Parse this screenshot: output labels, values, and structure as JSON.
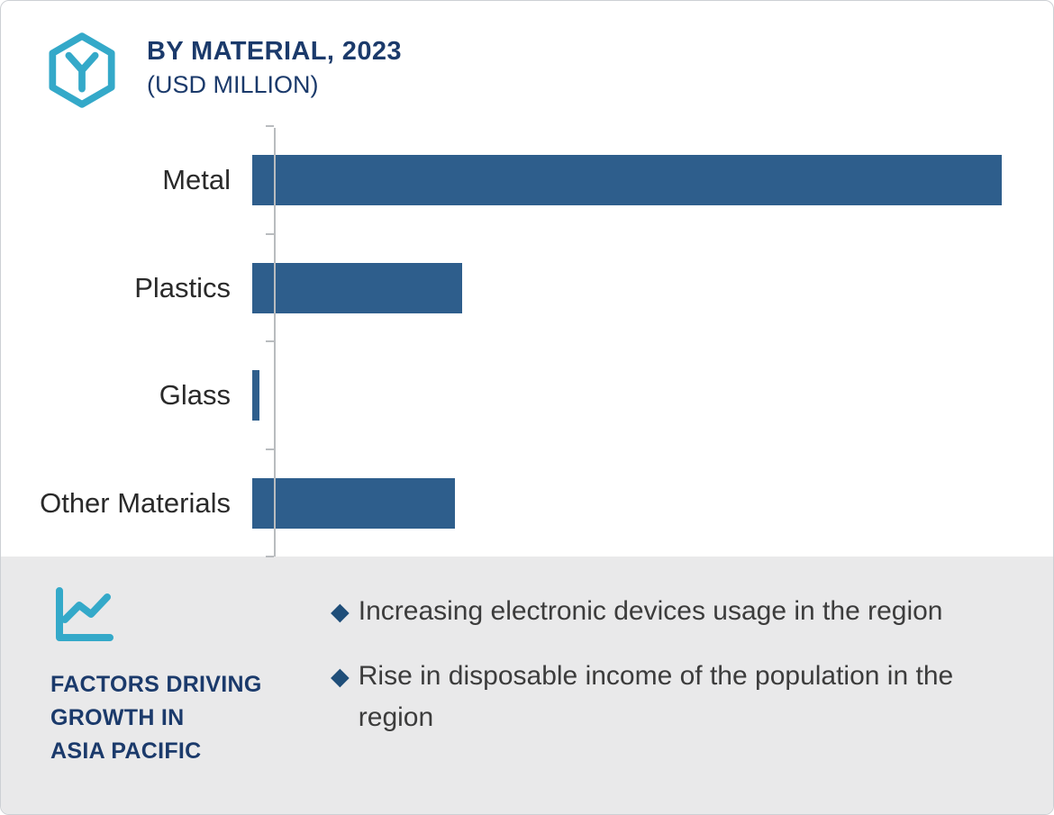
{
  "header": {
    "title": "BY MATERIAL, 2023",
    "subtitle": "(USD MILLION)",
    "title_color": "#1b3a6b",
    "logo_icon": "hexagon-molecule-icon",
    "accent_color": "#34a9c9"
  },
  "chart_data": {
    "type": "bar",
    "orientation": "horizontal",
    "title": "BY MATERIAL, 2023 (USD MILLION)",
    "categories": [
      "Metal",
      "Plastics",
      "Glass",
      "Other Materials"
    ],
    "values": [
      100,
      28,
      1,
      27
    ],
    "value_axis_labeled": false,
    "xlim": [
      0,
      100
    ],
    "grid": false,
    "legend": false,
    "bar_color": "#2e5e8c",
    "axis_color": "#b9bcbf"
  },
  "factors": {
    "icon": "trend-line-chart-icon",
    "heading": "FACTORS DRIVING\nGROWTH IN\nASIA PACIFIC",
    "heading_color": "#1b3a6b",
    "bullet_marker": "◆",
    "marker_color": "#1f4e79",
    "panel_background": "#e9e9ea",
    "items": [
      "Increasing electronic devices usage in the region",
      "Rise in disposable income of the population in the region"
    ]
  }
}
